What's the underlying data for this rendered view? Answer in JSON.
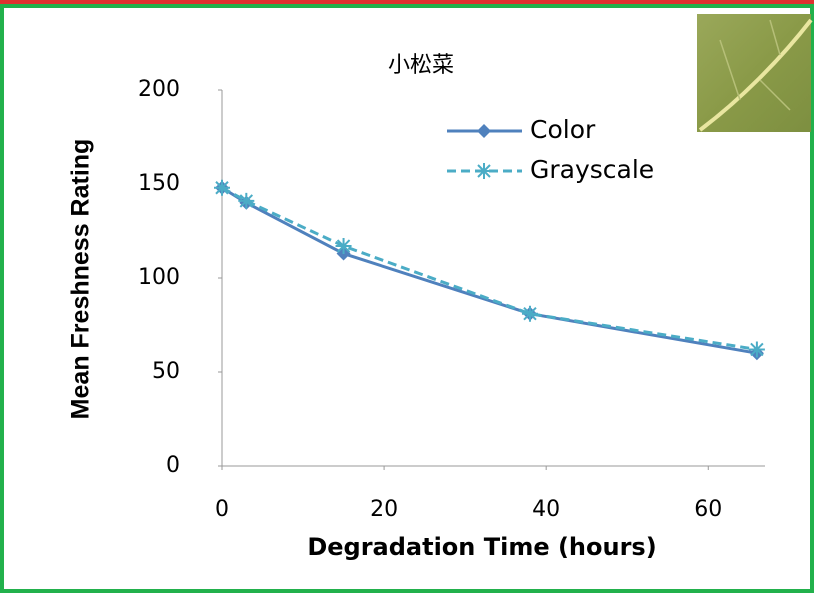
{
  "chart_data": {
    "type": "line",
    "title": "小松菜",
    "x_label": "Degradation Time (hours)",
    "y_label": "Mean Freshness Rating",
    "xlim": [
      0,
      67
    ],
    "xticks": [
      0,
      20,
      40,
      60
    ],
    "ylim": [
      0,
      200
    ],
    "yticks": [
      0,
      50,
      100,
      150,
      200
    ],
    "legend": "upper right",
    "series": [
      {
        "name": "Color",
        "color": "#4f81bd",
        "marker": "diamond",
        "dash": "solid",
        "x": [
          0,
          3,
          15,
          38,
          66
        ],
        "values": [
          148,
          140,
          113,
          81,
          60
        ]
      },
      {
        "name": "Grayscale",
        "color": "#4bacc6",
        "marker": "star",
        "dash": "dashed",
        "x": [
          0,
          3,
          15,
          38,
          66
        ],
        "values": [
          148,
          141,
          117,
          81,
          62
        ]
      }
    ]
  }
}
